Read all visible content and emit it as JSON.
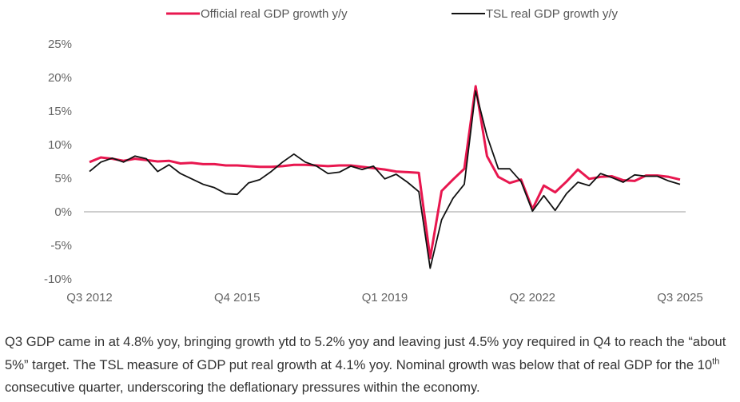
{
  "chart_data": {
    "type": "line",
    "title": "",
    "xlabel": "",
    "ylabel": "",
    "ylim": [
      -10,
      25
    ],
    "y_ticks": [
      "25%",
      "20%",
      "15%",
      "10%",
      "5%",
      "0%",
      "-5%",
      "-10%"
    ],
    "y_tick_values": [
      25,
      20,
      15,
      10,
      5,
      0,
      -5,
      -10
    ],
    "x_tick_labels": [
      "Q3 2012",
      "Q4 2015",
      "Q1 2019",
      "Q2 2022",
      "Q3 2025"
    ],
    "x_tick_indices": [
      0,
      13,
      26,
      39,
      52
    ],
    "x_start": "Q3 2012",
    "x_end": "Q3 2025",
    "legend_position": "top",
    "series": [
      {
        "name": "Official real GDP growth y/y",
        "color": "#e8174f",
        "values": [
          7.4,
          8.1,
          7.9,
          7.6,
          7.9,
          7.7,
          7.5,
          7.6,
          7.2,
          7.3,
          7.1,
          7.1,
          6.9,
          6.9,
          6.8,
          6.7,
          6.7,
          6.8,
          7.0,
          7.0,
          6.9,
          6.8,
          6.9,
          6.9,
          6.7,
          6.5,
          6.3,
          6.0,
          5.9,
          5.8,
          -6.9,
          3.1,
          4.8,
          6.4,
          18.7,
          8.3,
          5.2,
          4.3,
          4.8,
          0.4,
          3.9,
          2.9,
          4.5,
          6.3,
          4.9,
          5.2,
          5.3,
          4.7,
          4.6,
          5.4,
          5.4,
          5.2,
          4.8
        ]
      },
      {
        "name": "TSL real GDP growth y/y",
        "color": "#111111",
        "values": [
          6.0,
          7.4,
          8.0,
          7.4,
          8.3,
          7.9,
          6.0,
          7.0,
          5.7,
          4.9,
          4.1,
          3.6,
          2.7,
          2.6,
          4.3,
          4.8,
          6.0,
          7.4,
          8.6,
          7.4,
          6.8,
          5.7,
          5.9,
          6.8,
          6.3,
          6.8,
          4.9,
          5.6,
          4.4,
          3.0,
          -8.4,
          -1.2,
          2.0,
          4.1,
          18.0,
          11.3,
          6.4,
          6.4,
          4.5,
          0.1,
          2.4,
          0.2,
          2.7,
          4.4,
          3.9,
          5.7,
          5.1,
          4.4,
          5.5,
          5.3,
          5.3,
          4.6,
          4.1
        ]
      }
    ]
  },
  "caption": {
    "part1": "Q3 GDP came in at 4.8% yoy, bringing growth ytd to 5.2% yoy and leaving just 4.5% yoy required in Q4 to reach the “about 5%” target. The TSL measure of GDP put real growth at 4.1% yoy. Nominal growth was below that of real GDP for the 10",
    "sup": "th",
    "part2": " consecutive quarter, underscoring the deflationary pressures within the economy."
  }
}
